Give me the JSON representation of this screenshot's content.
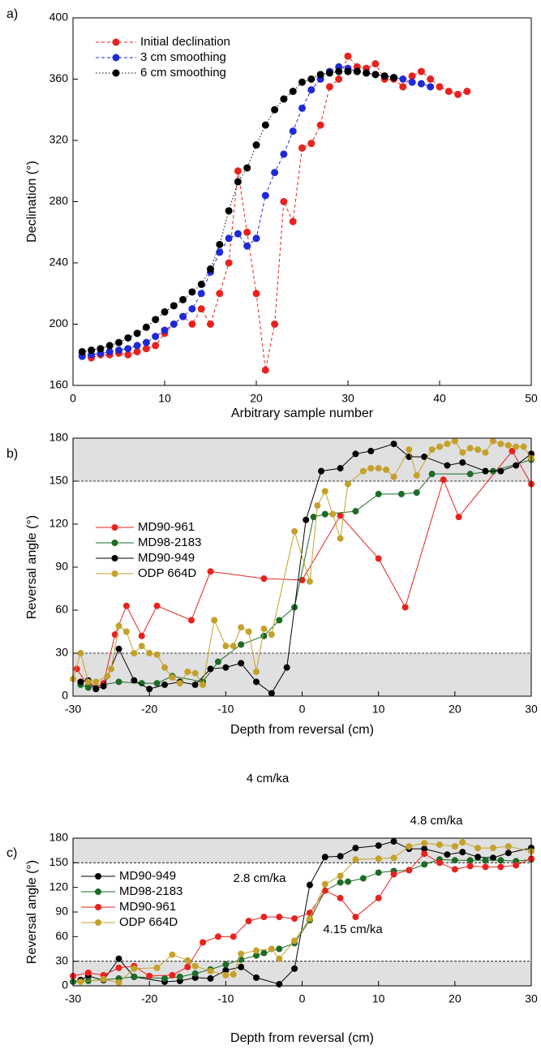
{
  "chart_data": [
    {
      "type": "line",
      "panel_label": "a)",
      "xlabel": "Arbitrary sample number",
      "ylabel": "Declination (°)",
      "xlim": [
        0,
        50
      ],
      "xticks": [
        0,
        10,
        20,
        30,
        40,
        50
      ],
      "ylim": [
        160,
        400
      ],
      "yticks": [
        160,
        200,
        240,
        280,
        320,
        360,
        400
      ],
      "legend": "upper left",
      "series": [
        {
          "name": "Initial declination",
          "color": "#e8221e",
          "linestyle": "dashed",
          "x": [
            1,
            2,
            3,
            4,
            5,
            6,
            7,
            8,
            9,
            10,
            11,
            12,
            13,
            14,
            15,
            16,
            17,
            18,
            19,
            20,
            21,
            22,
            23,
            24,
            25,
            26,
            27,
            28,
            29,
            30,
            31,
            32,
            33,
            34,
            35,
            36,
            37,
            38,
            39,
            40,
            41,
            42,
            43
          ],
          "values": [
            180,
            178,
            180,
            180,
            181,
            180,
            182,
            184,
            186,
            194,
            200,
            205,
            200,
            210,
            200,
            220,
            240,
            300,
            260,
            220,
            170,
            200,
            280,
            267,
            315,
            318,
            330,
            355,
            360,
            375,
            368,
            367,
            370,
            360,
            360,
            355,
            362,
            365,
            360,
            355,
            352,
            350,
            352
          ]
        },
        {
          "name": "3 cm smoothing",
          "color": "#1f2ad6",
          "linestyle": "dashed",
          "x": [
            1,
            2,
            3,
            4,
            5,
            6,
            7,
            8,
            9,
            10,
            11,
            12,
            13,
            14,
            15,
            16,
            17,
            18,
            19,
            20,
            21,
            22,
            23,
            24,
            25,
            26,
            27,
            28,
            29,
            30,
            31,
            32,
            33,
            34,
            35,
            36,
            37,
            38,
            39
          ],
          "values": [
            179,
            180,
            181,
            182,
            183,
            184,
            186,
            188,
            192,
            196,
            200,
            205,
            210,
            220,
            234,
            247,
            256,
            259,
            251,
            256,
            284,
            299,
            311,
            326,
            341,
            353,
            360,
            365,
            368,
            367,
            365,
            364,
            363,
            362,
            361,
            360,
            358,
            357,
            355
          ]
        },
        {
          "name": "6 cm smoothing",
          "color": "#000000",
          "linestyle": "dotted",
          "x": [
            1,
            2,
            3,
            4,
            5,
            6,
            7,
            8,
            9,
            10,
            11,
            12,
            13,
            14,
            15,
            16,
            17,
            18,
            19,
            20,
            21,
            22,
            23,
            24,
            25,
            26,
            27,
            28,
            29,
            30,
            31,
            32,
            33,
            34,
            35
          ],
          "values": [
            182,
            183,
            184,
            186,
            188,
            191,
            194,
            198,
            203,
            208,
            212,
            216,
            221,
            226,
            236,
            252,
            274,
            293,
            302,
            317,
            330,
            340,
            347,
            352,
            358,
            360,
            363,
            364,
            365,
            365,
            365,
            364,
            363,
            362,
            361
          ]
        }
      ]
    },
    {
      "type": "line",
      "panel_label": "b)",
      "xlabel": "Depth from reversal (cm)",
      "ylabel": "Reversal angle (°)",
      "xlim": [
        -30,
        30
      ],
      "xticks": [
        -30,
        -20,
        -10,
        0,
        10,
        20,
        30
      ],
      "ylim": [
        0,
        180
      ],
      "yticks": [
        0,
        30,
        60,
        90,
        120,
        150,
        180
      ],
      "legend": "center left",
      "shaded_ranges": [
        [
          0,
          30
        ],
        [
          150,
          180
        ]
      ],
      "reference_lines": [
        30,
        150
      ],
      "series": [
        {
          "name": "MD90-961",
          "color": "#e8221e",
          "linestyle": "solid",
          "x": [
            -29.5,
            -28,
            -27,
            -26,
            -24.5,
            -23,
            -21,
            -19,
            -14.5,
            -12,
            -5,
            0,
            5,
            10,
            13.5,
            18.5,
            20.5,
            27.5,
            30
          ],
          "values": [
            19,
            7,
            6,
            9,
            43,
            63,
            42,
            63,
            53,
            87,
            82,
            81,
            126,
            96,
            62,
            151,
            125,
            171,
            148
          ]
        },
        {
          "name": "MD98-2183",
          "color": "#1e6b26",
          "linestyle": "solid",
          "x": [
            -29,
            -28,
            -24,
            -21,
            -19,
            -17,
            -13,
            -11,
            -8,
            -5,
            -3,
            -1,
            1.5,
            3,
            7,
            10,
            13,
            15,
            17,
            22,
            25,
            30
          ],
          "values": [
            8,
            6,
            10,
            9,
            9,
            14,
            10,
            24,
            36,
            42,
            53,
            62,
            125,
            127,
            129,
            141,
            141,
            142,
            155,
            155,
            157,
            165
          ]
        },
        {
          "name": "MD90-949",
          "color": "#000000",
          "linestyle": "solid",
          "x": [
            -29,
            -28,
            -27,
            -26,
            -24,
            -22,
            -20,
            -18,
            -16,
            -14,
            -12,
            -10,
            -8,
            -6,
            -4,
            -2,
            0.5,
            2.5,
            5,
            7,
            9,
            12,
            14,
            16,
            19,
            21,
            24,
            26,
            28,
            30
          ],
          "values": [
            10,
            11,
            5,
            7,
            33,
            11,
            5,
            8,
            10,
            8,
            19,
            20,
            23,
            10,
            2,
            20,
            123,
            157,
            159,
            169,
            171,
            176,
            167,
            167,
            161,
            163,
            157,
            157,
            161,
            169
          ]
        },
        {
          "name": "ODP 664D",
          "color": "#c4a12a",
          "linestyle": "solid",
          "x": [
            -30,
            -29,
            -28,
            -27,
            -25.5,
            -25,
            -24,
            -23,
            -22,
            -21,
            -20,
            -19,
            -18,
            -17,
            -16,
            -15,
            -14,
            -13,
            -11.5,
            -10,
            -9,
            -8,
            -7,
            -6,
            -5,
            -4,
            -1,
            1,
            2,
            3,
            4,
            5,
            6,
            8,
            9,
            10,
            11,
            12,
            14,
            15,
            17,
            18,
            19,
            20,
            21,
            22,
            23,
            24,
            25,
            26,
            27,
            28,
            29,
            30
          ],
          "values": [
            12,
            30,
            10,
            10,
            14,
            19,
            49,
            45,
            30,
            35,
            30,
            29,
            20,
            13,
            9,
            17,
            16,
            8,
            53,
            35,
            35,
            48,
            45,
            17,
            47,
            43,
            115,
            80,
            133,
            143,
            127,
            110,
            148,
            157,
            159,
            159,
            158,
            153,
            172,
            154,
            172,
            174,
            176,
            178,
            170,
            173,
            172,
            170,
            178,
            176,
            175,
            174,
            174,
            166
          ]
        }
      ]
    },
    {
      "type": "line",
      "panel_label": "c)",
      "xlabel": "Depth from reversal (cm)",
      "ylabel": "Reversal angle (°)",
      "xlim": [
        -30,
        30
      ],
      "xticks": [
        -30,
        -20,
        -10,
        0,
        10,
        20,
        30
      ],
      "ylim": [
        0,
        180
      ],
      "yticks": [
        0,
        30,
        60,
        90,
        120,
        150,
        180
      ],
      "legend": "upper left",
      "shaded_ranges": [
        [
          0,
          30
        ],
        [
          150,
          180
        ]
      ],
      "reference_lines": [
        30,
        150
      ],
      "annotations": [
        {
          "text": "4 cm/ka",
          "color": "#c4a12a"
        },
        {
          "text": "4.8 cm/ka",
          "color": "#e8221e"
        },
        {
          "text": "2.8 cm/ka",
          "color": "#000000"
        },
        {
          "text": "4.15 cm/ka",
          "color": "#1e6b26"
        }
      ],
      "series": [
        {
          "name": "MD90-949",
          "color": "#000000",
          "linestyle": "solid",
          "x": [
            -29,
            -28,
            -26,
            -24,
            -22,
            -18,
            -16,
            -14,
            -12,
            -10,
            -8,
            -6,
            -3,
            -1,
            1,
            3,
            5,
            7,
            10,
            12,
            14,
            16,
            19,
            21,
            23,
            25,
            27,
            30
          ],
          "values": [
            7,
            12,
            7,
            33,
            11,
            5,
            6,
            10,
            9,
            19,
            23,
            10,
            2,
            21,
            123,
            157,
            158,
            168,
            171,
            176,
            167,
            167,
            160,
            163,
            157,
            156,
            162,
            168
          ]
        },
        {
          "name": "MD98-2183",
          "color": "#1e6b26",
          "linestyle": "solid",
          "x": [
            -30,
            -28,
            -24,
            -22,
            -18,
            -16,
            -14,
            -12,
            -10,
            -8,
            -6,
            -5,
            -3,
            -1,
            1,
            3,
            5,
            6,
            8,
            10,
            12,
            14,
            16,
            18,
            20,
            22,
            24,
            26,
            28,
            30
          ],
          "values": [
            5,
            6,
            9,
            11,
            9,
            11,
            15,
            20,
            26,
            32,
            37,
            40,
            45,
            52,
            80,
            116,
            126,
            127,
            131,
            138,
            140,
            141,
            148,
            154,
            153,
            153,
            153,
            153,
            152,
            154
          ]
        },
        {
          "name": "MD90-961",
          "color": "#e8221e",
          "linestyle": "solid",
          "x": [
            -30,
            -28,
            -26,
            -24,
            -22,
            -20,
            -17,
            -15,
            -13,
            -11,
            -9,
            -7,
            -5,
            -3,
            -1,
            1,
            3,
            5,
            7,
            10,
            12,
            14,
            16,
            18,
            20,
            22,
            24,
            26,
            28,
            30
          ],
          "values": [
            12,
            16,
            13,
            22,
            24,
            12,
            13,
            23,
            53,
            60,
            60,
            79,
            84,
            84,
            82,
            89,
            116,
            107,
            84,
            107,
            136,
            141,
            161,
            150,
            142,
            146,
            145,
            145,
            147,
            155
          ]
        },
        {
          "name": "ODP 664D",
          "color": "#c4a12a",
          "linestyle": "solid",
          "x": [
            -29,
            -26,
            -24,
            -22,
            -19,
            -17,
            -15,
            -14,
            -12,
            -10,
            -9,
            -8,
            -6,
            -4,
            -3,
            -1,
            1,
            3,
            5,
            7,
            10,
            12,
            14,
            16,
            18,
            20,
            21,
            23,
            25,
            27,
            30
          ],
          "values": [
            5,
            8,
            4,
            21,
            22,
            38,
            31,
            24,
            18,
            13,
            14,
            39,
            43,
            45,
            33,
            55,
            82,
            124,
            134,
            154,
            155,
            156,
            170,
            174,
            172,
            170,
            175,
            168,
            168,
            170,
            164
          ]
        }
      ]
    }
  ]
}
